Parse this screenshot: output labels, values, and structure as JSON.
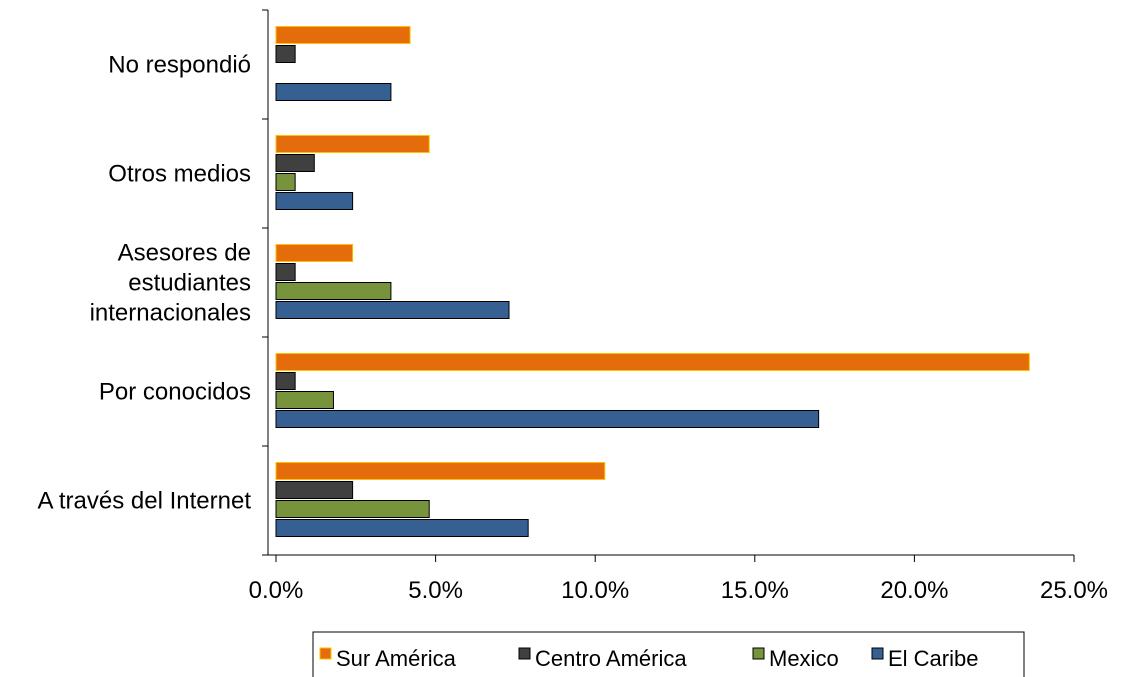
{
  "chart_data": {
    "type": "bar",
    "orientation": "horizontal",
    "categories": [
      [
        "A través del Internet"
      ],
      [
        "Por conocidos"
      ],
      [
        "Asesores de",
        "estudiantes",
        "internacionales"
      ],
      [
        "Otros medios"
      ],
      [
        "No respondió"
      ]
    ],
    "category_names": [
      "A través del Internet",
      "Por conocidos",
      "Asesores de estudiantes internacionales",
      "Otros medios",
      "No respondió"
    ],
    "series": [
      {
        "name": "Sur América",
        "color": "#E46C0A",
        "values": [
          10.3,
          23.6,
          2.4,
          4.8,
          4.2
        ]
      },
      {
        "name": "Centro América",
        "color": "#404040",
        "values": [
          2.4,
          0.6,
          0.6,
          1.2,
          0.6
        ]
      },
      {
        "name": "Mexico",
        "color": "#77933C",
        "values": [
          4.8,
          1.8,
          3.6,
          0.6,
          0.0
        ]
      },
      {
        "name": "El Caribe",
        "color": "#376092",
        "values": [
          7.9,
          17.0,
          7.3,
          2.4,
          3.6
        ]
      }
    ],
    "xlim": [
      0,
      25
    ],
    "xticks": [
      0,
      5,
      10,
      15,
      20,
      25
    ],
    "xtick_labels": [
      "0.0%",
      "5.0%",
      "10.0%",
      "15.0%",
      "20.0%",
      "25.0%"
    ],
    "title": "",
    "xlabel": "",
    "ylabel": "",
    "grid": false,
    "legend_position": "bottom"
  }
}
